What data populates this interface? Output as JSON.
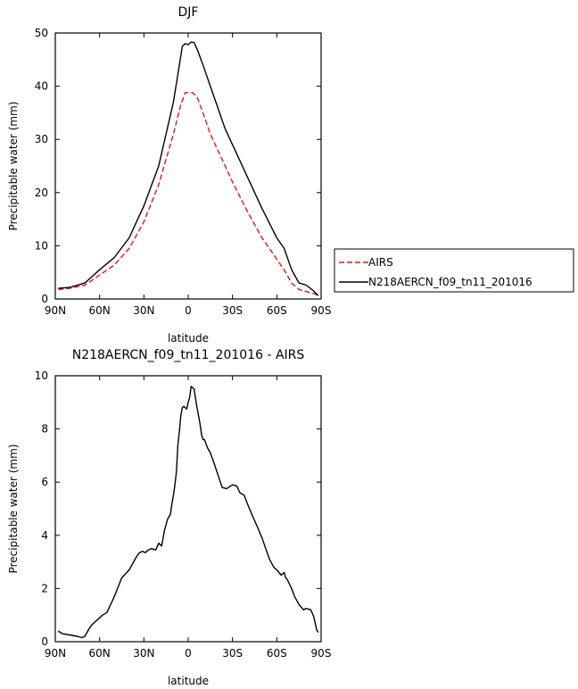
{
  "chart_data": [
    {
      "type": "line",
      "title": "DJF",
      "xlabel": "latitude",
      "ylabel": "Precipitable water (mm)",
      "xlim": [
        90,
        -90
      ],
      "ylim": [
        0,
        50
      ],
      "xticks": [
        90,
        60,
        30,
        0,
        -30,
        -60,
        -90
      ],
      "xtick_labels": [
        "90N",
        "60N",
        "30N",
        "0",
        "30S",
        "60S",
        "90S"
      ],
      "yticks": [
        0,
        10,
        20,
        30,
        40,
        50
      ],
      "ytick_labels": [
        "0",
        "10",
        "20",
        "30",
        "40",
        "50"
      ],
      "legend_position": "right",
      "series": [
        {
          "name": "AIRS",
          "color": "#e8141c",
          "dash": "dashed",
          "x": [
            88,
            80,
            70,
            60,
            50,
            40,
            30,
            20,
            10,
            5,
            2,
            0,
            -3,
            -6,
            -10,
            -15,
            -20,
            -30,
            -40,
            -50,
            -60,
            -66,
            -70,
            -75,
            -80,
            -85,
            -88
          ],
          "y": [
            1.8,
            2,
            2.6,
            4.5,
            6.4,
            9.5,
            14.5,
            21.5,
            31,
            36.5,
            38.8,
            38.8,
            38.8,
            38,
            35,
            31,
            28,
            22,
            16.5,
            11.5,
            7.5,
            5,
            3,
            1.8,
            1.4,
            1.0,
            0.7
          ]
        },
        {
          "name": "N218AERCN_f09_tn11_201016",
          "color": "#000000",
          "dash": "solid",
          "x": [
            88,
            80,
            70,
            60,
            50,
            40,
            30,
            20,
            10,
            6,
            4,
            2,
            0,
            -2,
            -4,
            -6,
            -10,
            -15,
            -20,
            -25,
            -30,
            -40,
            -50,
            -60,
            -65,
            -70,
            -75,
            -80,
            -85,
            -88
          ],
          "y": [
            2,
            2.2,
            3,
            5.5,
            7.8,
            11.5,
            17.5,
            25,
            37,
            44,
            47.5,
            48,
            47.8,
            48.3,
            48.2,
            47,
            44,
            40,
            36,
            32,
            29,
            23,
            17,
            11.5,
            9.5,
            5.5,
            3,
            2.6,
            1.5,
            0.6
          ]
        }
      ]
    },
    {
      "type": "line",
      "title": "N218AERCN_f09_tn11_201016 - AIRS",
      "xlabel": "latitude",
      "ylabel": "Precipitable water (mm)",
      "xlim": [
        90,
        -90
      ],
      "ylim": [
        0,
        10
      ],
      "xticks": [
        90,
        60,
        30,
        0,
        -30,
        -60,
        -90
      ],
      "xtick_labels": [
        "90N",
        "60N",
        "30N",
        "0",
        "30S",
        "60S",
        "90S"
      ],
      "yticks": [
        0,
        2,
        4,
        6,
        8,
        10
      ],
      "ytick_labels": [
        "0",
        "2",
        "4",
        "6",
        "8",
        "10"
      ],
      "series": [
        {
          "color": "#000000",
          "dash": "solid",
          "x": [
            88,
            85,
            80,
            75,
            72,
            70,
            67,
            65,
            60,
            58,
            55,
            50,
            45,
            40,
            38,
            35,
            33,
            31,
            29,
            27,
            25,
            22,
            20,
            18,
            16,
            14,
            12,
            11,
            10,
            9,
            8,
            7,
            6,
            5,
            4,
            3,
            2,
            1,
            0,
            -1,
            -2,
            -4,
            -6,
            -7,
            -8,
            -9,
            -10,
            -11,
            -13,
            -15,
            -17,
            -20,
            -23,
            -26,
            -30,
            -33,
            -35,
            -38,
            -40,
            -43,
            -47,
            -50,
            -55,
            -58,
            -60,
            -63,
            -65,
            -66,
            -67,
            -70,
            -72,
            -75,
            -78,
            -80,
            -83,
            -85,
            -87,
            -88
          ],
          "y": [
            0.4,
            0.3,
            0.25,
            0.2,
            0.15,
            0.2,
            0.5,
            0.65,
            0.9,
            1.0,
            1.1,
            1.7,
            2.4,
            2.7,
            2.9,
            3.2,
            3.35,
            3.4,
            3.35,
            3.45,
            3.5,
            3.45,
            3.7,
            3.6,
            4.2,
            4.6,
            4.8,
            5.2,
            5.5,
            5.9,
            6.4,
            7.4,
            7.9,
            8.5,
            8.8,
            8.85,
            8.8,
            8.75,
            9.0,
            9.2,
            9.6,
            9.5,
            8.8,
            8.5,
            8.2,
            7.8,
            7.6,
            7.6,
            7.3,
            7.1,
            6.8,
            6.3,
            5.8,
            5.75,
            5.9,
            5.85,
            5.6,
            5.5,
            5.2,
            4.8,
            4.3,
            3.9,
            3.1,
            2.8,
            2.7,
            2.5,
            2.6,
            2.4,
            2.35,
            2.0,
            1.7,
            1.4,
            1.2,
            1.25,
            1.2,
            0.95,
            0.45,
            0.35
          ]
        }
      ]
    }
  ]
}
